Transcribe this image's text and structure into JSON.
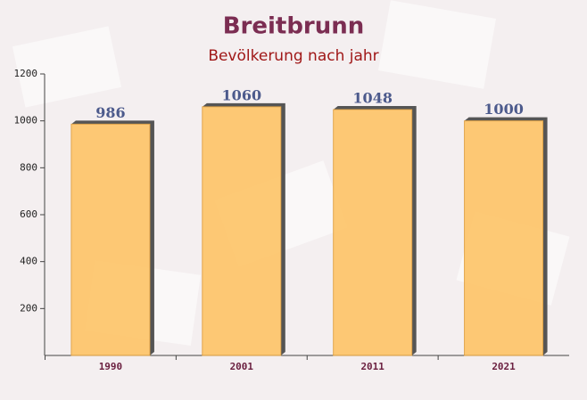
{
  "chart_data": {
    "type": "bar",
    "title": "Breitbrunn",
    "subtitle": "Bevölkerung nach jahr",
    "categories": [
      "1990",
      "2001",
      "2011",
      "2021"
    ],
    "values": [
      986,
      1060,
      1048,
      1000
    ],
    "color": "#fdc56a",
    "ylim": [
      0,
      1200
    ],
    "yticks": [
      200,
      400,
      600,
      800,
      1000,
      1200
    ]
  }
}
